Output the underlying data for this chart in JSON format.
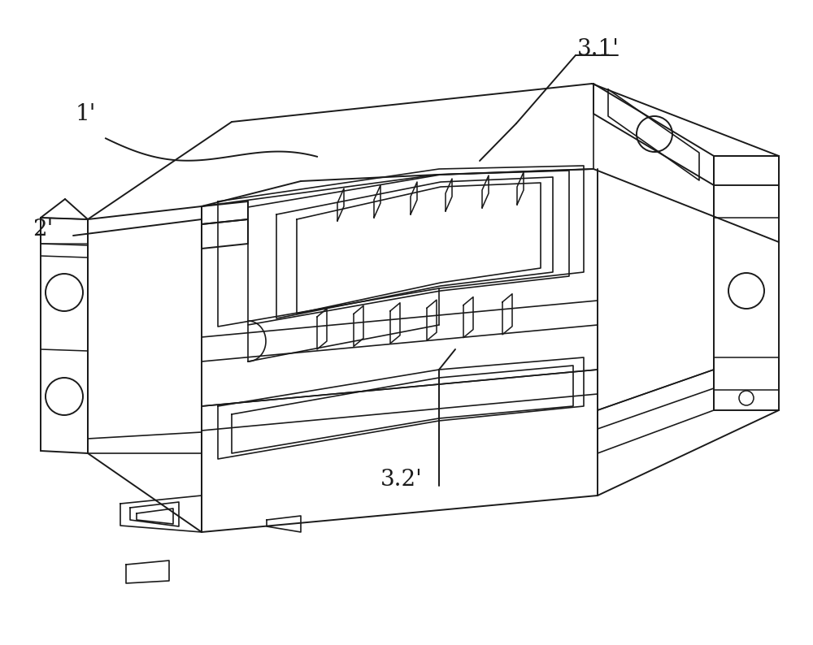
{
  "background_color": "#ffffff",
  "line_color": "#1a1a1a",
  "line_width": 1.4,
  "label_1": "1'",
  "label_2": "2'",
  "label_31": "3.1'",
  "label_32": "3.2'",
  "figsize": [
    10.0,
    7.94
  ]
}
